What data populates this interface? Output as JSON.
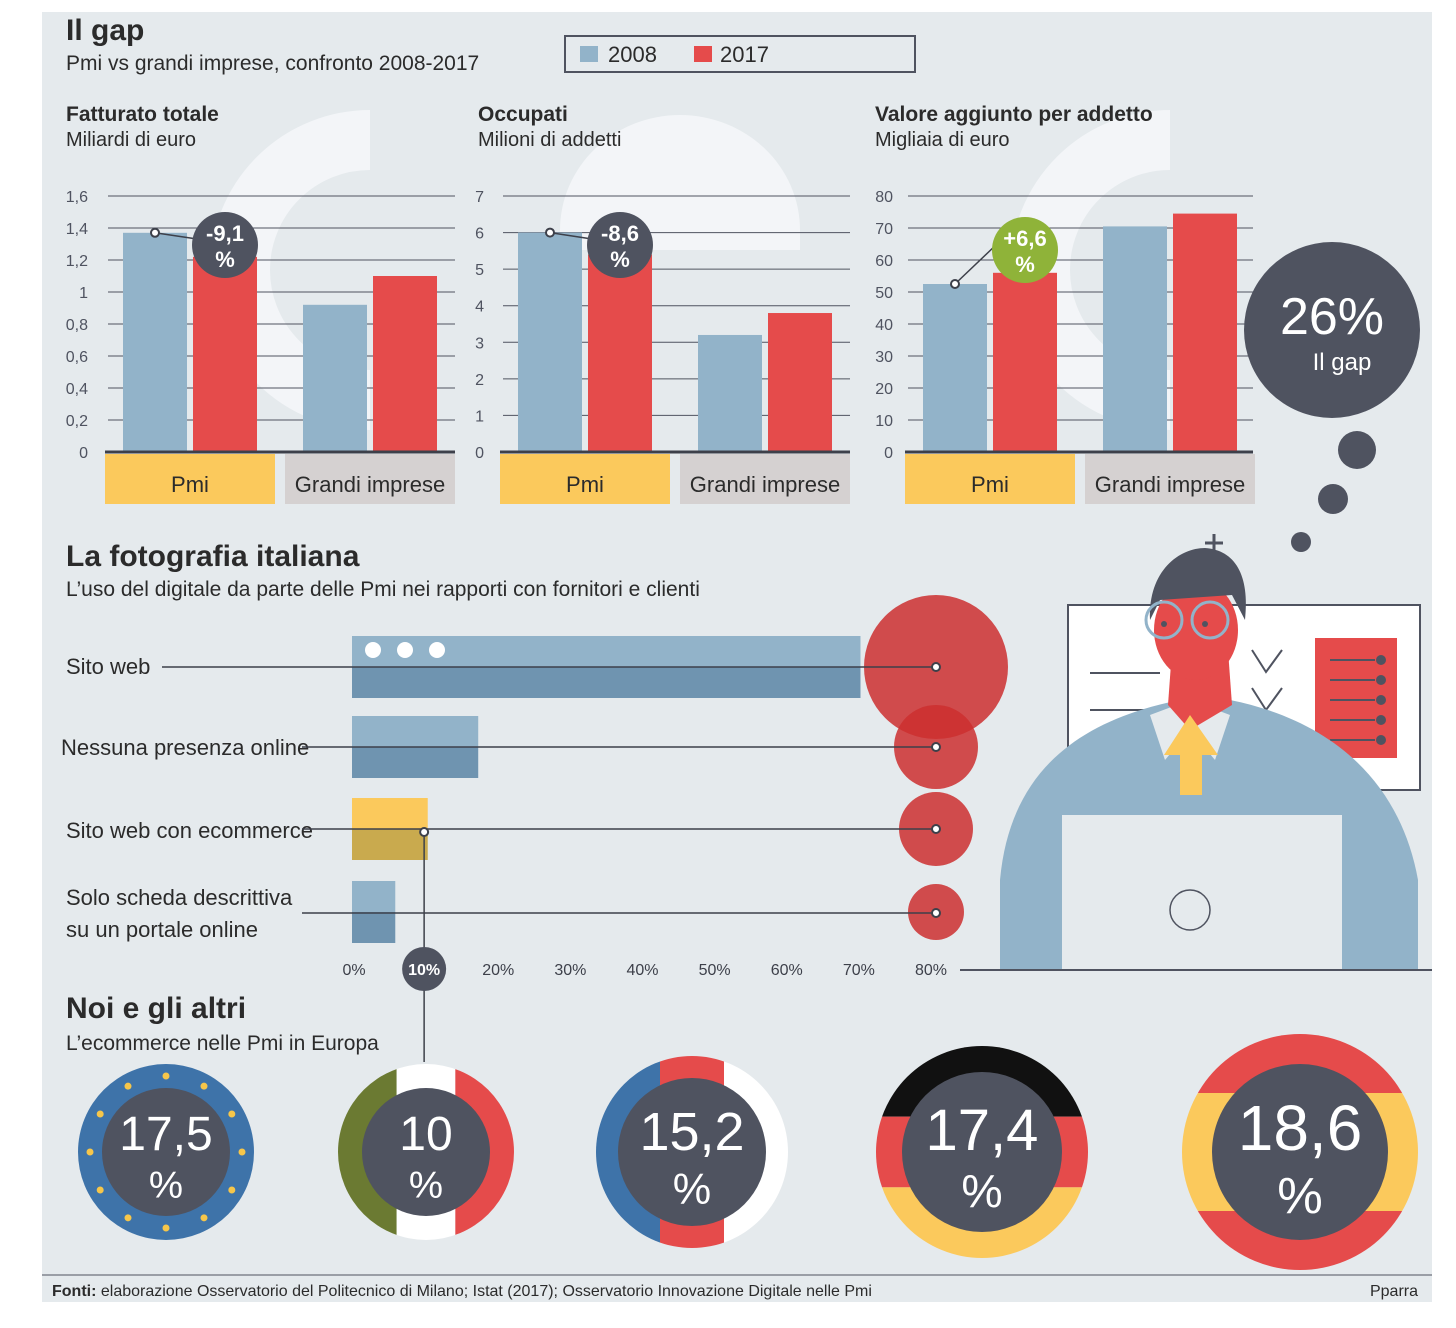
{
  "header": {
    "title": "Il gap",
    "subtitle": "Pmi vs grandi imprese, confronto 2008-2017",
    "legend": [
      {
        "label": "2008",
        "color": "#92b3c9"
      },
      {
        "label": "2017",
        "color": "#e54b4b"
      }
    ]
  },
  "colors": {
    "background": "#e5eaed",
    "blue": "#92b3c9",
    "blue_dark": "#6f94b0",
    "red": "#e54b4b",
    "yellow": "#fbc95c",
    "gray_label": "#d5d1d1",
    "dark": "#4f5360",
    "green": "#8fb339"
  },
  "chart_data": [
    {
      "type": "bar",
      "title": "Fatturato totale",
      "subtitle": "Miliardi di euro",
      "categories": [
        "Pmi",
        "Grandi imprese"
      ],
      "series": [
        {
          "name": "2008",
          "values": [
            1.37,
            0.92
          ]
        },
        {
          "name": "2017",
          "values": [
            1.22,
            1.1
          ]
        }
      ],
      "ylim": [
        0,
        1.6
      ],
      "yticks": [
        0,
        0.2,
        0.4,
        0.6,
        0.8,
        1,
        1.2,
        1.4,
        1.6
      ],
      "ytick_labels": [
        "0",
        "0,2",
        "0,4",
        "0,6",
        "0,8",
        "1",
        "1,2",
        "1,4",
        "1,6"
      ],
      "annotation": {
        "line1": "-9,1",
        "line2": "%"
      }
    },
    {
      "type": "bar",
      "title": "Occupati",
      "subtitle": "Milioni di addetti",
      "categories": [
        "Pmi",
        "Grandi imprese"
      ],
      "series": [
        {
          "name": "2008",
          "values": [
            6.0,
            3.2
          ]
        },
        {
          "name": "2017",
          "values": [
            5.4,
            3.8
          ]
        }
      ],
      "ylim": [
        0,
        7
      ],
      "yticks": [
        0,
        1,
        2,
        3,
        4,
        5,
        6,
        7
      ],
      "ytick_labels": [
        "0",
        "1",
        "2",
        "3",
        "4",
        "5",
        "6",
        "7"
      ],
      "annotation": {
        "line1": "-8,6",
        "line2": "%"
      }
    },
    {
      "type": "bar",
      "title": "Valore aggiunto per addetto",
      "subtitle": "Migliaia di euro",
      "categories": [
        "Pmi",
        "Grandi imprese"
      ],
      "series": [
        {
          "name": "2008",
          "values": [
            52.5,
            70.5
          ]
        },
        {
          "name": "2017",
          "values": [
            56,
            74.5
          ]
        }
      ],
      "ylim": [
        0,
        80
      ],
      "yticks": [
        0,
        10,
        20,
        30,
        40,
        50,
        60,
        70,
        80
      ],
      "ytick_labels": [
        "0",
        "10",
        "20",
        "30",
        "40",
        "50",
        "60",
        "70",
        "80"
      ],
      "annotation": {
        "line1": "+6,6",
        "line2": "%"
      }
    },
    {
      "type": "bar",
      "orientation": "horizontal",
      "title": "La fotografia italiana",
      "subtitle": "L’uso del digitale da parte delle Pmi nei rapporti con fornitori e clienti",
      "categories": [
        {
          "line1": "Sito web",
          "line2": ""
        },
        {
          "line1": "Nessuna presenza online",
          "line2": ""
        },
        {
          "line1": "Sito web con ecommerce",
          "line2": ""
        },
        {
          "line1": "Solo scheda descrittiva",
          "line2": "su un portale online"
        }
      ],
      "values": [
        70.5,
        17.5,
        10.5,
        6
      ],
      "xlim": [
        0,
        80
      ],
      "xticks": [
        0,
        10,
        20,
        30,
        40,
        50,
        60,
        70,
        80
      ],
      "xtick_labels": [
        "0%",
        "10%",
        "20%",
        "30%",
        "40%",
        "50%",
        "60%",
        "70%",
        "80%"
      ],
      "highlight_tick": "10%"
    },
    {
      "type": "table",
      "title": "Noi e gli altri",
      "subtitle": "L’ecommerce nelle Pmi in Europa",
      "items": [
        {
          "value": "17,5",
          "unit": "%",
          "flag": "eu-flag"
        },
        {
          "value": "10",
          "unit": "%",
          "flag": "italy-flag"
        },
        {
          "value": "15,2",
          "unit": "%",
          "flag": "france-flag"
        },
        {
          "value": "17,4",
          "unit": "%",
          "flag": "germany-flag"
        },
        {
          "value": "18,6",
          "unit": "%",
          "flag": "spain-flag"
        }
      ]
    }
  ],
  "gap_bubble": {
    "value": "26%",
    "label": "Il gap"
  },
  "footer": {
    "sources_label": "Fonti:",
    "sources_text": " elaborazione Osservatorio del Politecnico di Milano; Istat (2017); Osservatorio Innovazione Digitale nelle Pmi",
    "credit": "Pparra"
  }
}
